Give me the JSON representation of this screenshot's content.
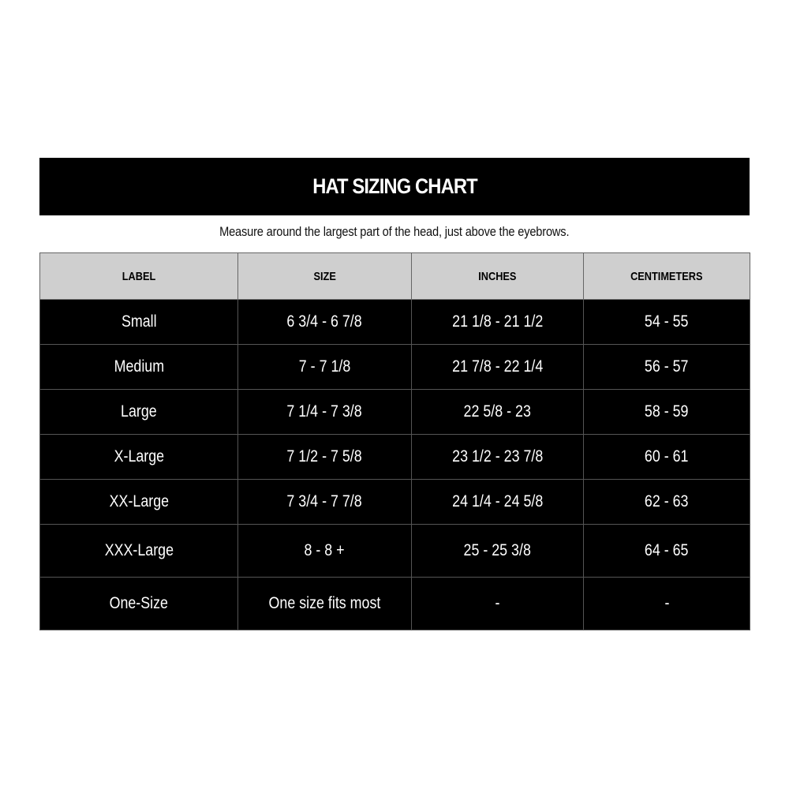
{
  "title": "HAT SIZING CHART",
  "subtitle": "Measure around the largest part of the head, just above the eyebrows.",
  "columns": [
    "LABEL",
    "SIZE",
    "INCHES",
    "CENTIMETERS"
  ],
  "rows": [
    [
      "Small",
      "6 3/4 - 6 7/8",
      "21 1/8 - 21 1/2",
      "54 - 55"
    ],
    [
      "Medium",
      "7 - 7 1/8",
      "21 7/8 - 22 1/4",
      "56 - 57"
    ],
    [
      "Large",
      "7 1/4 - 7 3/8",
      "22 5/8 - 23",
      "58 - 59"
    ],
    [
      "X-Large",
      "7 1/2 - 7 5/8",
      "23 1/2 - 23 7/8",
      "60 - 61"
    ],
    [
      "XX-Large",
      "7 3/4 - 7 7/8",
      "24 1/4 - 24 5/8",
      "62 - 63"
    ],
    [
      "XXX-Large",
      "8 - 8 +",
      "25 - 25 3/8",
      "64 - 65"
    ],
    [
      "One-Size",
      "One size fits most",
      "-",
      "-"
    ]
  ],
  "colors": {
    "header_bg": "#cfcfcf",
    "row_bg": "#000000",
    "title_bg": "#000000"
  }
}
